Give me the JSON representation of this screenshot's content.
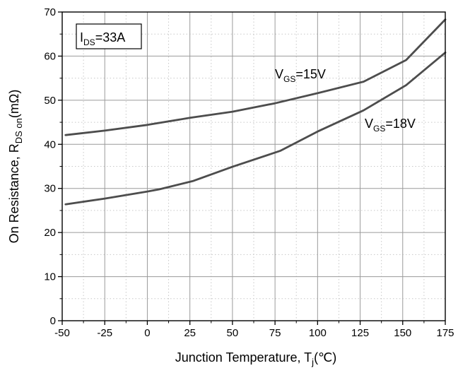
{
  "chart_data": {
    "type": "line",
    "xlabel": {
      "main": "Junction Temperature, T",
      "sub": "j",
      "tail": "(℃)"
    },
    "ylabel": {
      "main": "On Resistance, R",
      "sub": "DS on",
      "tail": "(mΩ)"
    },
    "xlim": [
      -50,
      175
    ],
    "ylim": [
      0,
      70
    ],
    "xticks": [
      -50,
      -25,
      0,
      25,
      50,
      75,
      100,
      125,
      150,
      175
    ],
    "yticks": [
      0,
      10,
      20,
      30,
      40,
      50,
      60,
      70
    ],
    "x_minor_step": 12.5,
    "y_minor_step": 5,
    "grid": true,
    "legend_box": {
      "main": "I",
      "sub": "DS",
      "tail": "=33A"
    },
    "series": [
      {
        "name": "VGS=15V",
        "label": {
          "main": "V",
          "sub": "GS",
          "tail": "=15V"
        },
        "color": "#4d4d4d",
        "points": [
          [
            -48,
            42.1
          ],
          [
            -25,
            43.1
          ],
          [
            0,
            44.4
          ],
          [
            25,
            46.0
          ],
          [
            50,
            47.4
          ],
          [
            75,
            49.3
          ],
          [
            100,
            51.6
          ],
          [
            127,
            54.2
          ],
          [
            152,
            59.1
          ],
          [
            175,
            68.3
          ]
        ]
      },
      {
        "name": "VGS=18V",
        "label": {
          "main": "V",
          "sub": "GS",
          "tail": "=18V"
        },
        "color": "#4d4d4d",
        "points": [
          [
            -48,
            26.4
          ],
          [
            -25,
            27.7
          ],
          [
            0,
            29.3
          ],
          [
            7,
            29.8
          ],
          [
            27,
            31.7
          ],
          [
            50,
            34.9
          ],
          [
            78,
            38.5
          ],
          [
            100,
            42.9
          ],
          [
            127,
            47.7
          ],
          [
            152,
            53.4
          ],
          [
            175,
            60.8
          ]
        ]
      }
    ]
  }
}
